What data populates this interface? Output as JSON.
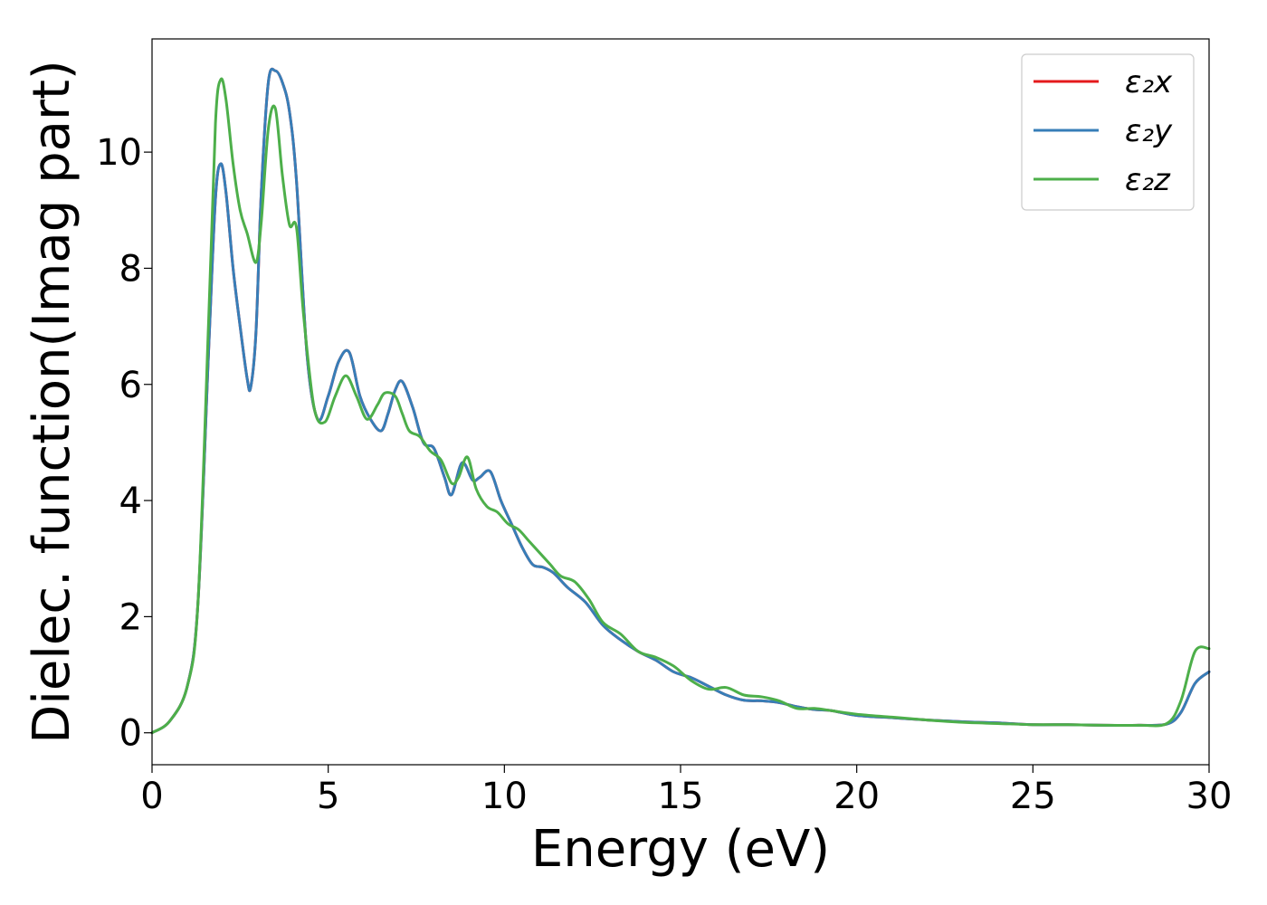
{
  "chart_data": {
    "type": "line",
    "title": "",
    "xlabel": "Energy (eV)",
    "ylabel": "Dielec. function(Imag part)",
    "xlim": [
      0,
      30
    ],
    "ylim": [
      -0.55,
      11.95
    ],
    "xticks": [
      0,
      5,
      10,
      15,
      20,
      25,
      30
    ],
    "xtick_labels": [
      "0",
      "5",
      "10",
      "15",
      "20",
      "25",
      "30"
    ],
    "yticks": [
      0,
      2,
      4,
      6,
      8,
      10
    ],
    "ytick_labels": [
      "0",
      "2",
      "4",
      "6",
      "8",
      "10"
    ],
    "grid": false,
    "legend_position": "top-right",
    "series": [
      {
        "name": "ε₂x",
        "color": "#e41a1c",
        "x": [
          0,
          0.5,
          1.0,
          1.3,
          1.6,
          1.8,
          1.95,
          2.1,
          2.3,
          2.5,
          2.7,
          2.8,
          2.95,
          3.1,
          3.3,
          3.5,
          3.7,
          3.9,
          4.1,
          4.4,
          4.7,
          5.0,
          5.3,
          5.6,
          5.9,
          6.2,
          6.5,
          6.7,
          6.9,
          7.1,
          7.4,
          7.7,
          8.0,
          8.3,
          8.5,
          8.8,
          9.1,
          9.3,
          9.6,
          9.9,
          10.2,
          10.5,
          10.8,
          11.1,
          11.4,
          11.8,
          12.3,
          12.8,
          13.3,
          13.8,
          14.3,
          14.8,
          15.3,
          15.8,
          16.3,
          16.8,
          17.3,
          17.8,
          18.3,
          18.8,
          19.3,
          20.0,
          21.0,
          22.0,
          23.0,
          24.0,
          25.0,
          26.0,
          27.0,
          28.0,
          28.8,
          29.2,
          29.6,
          30.0
        ],
        "y": [
          0.0,
          0.2,
          0.8,
          2.2,
          6.5,
          9.2,
          9.8,
          9.3,
          8.0,
          7.0,
          6.1,
          5.95,
          6.9,
          9.3,
          11.2,
          11.4,
          11.2,
          10.7,
          9.5,
          6.5,
          5.4,
          5.8,
          6.4,
          6.55,
          5.8,
          5.4,
          5.2,
          5.5,
          5.9,
          6.05,
          5.6,
          5.0,
          4.9,
          4.4,
          4.1,
          4.65,
          4.35,
          4.4,
          4.5,
          4.0,
          3.6,
          3.2,
          2.9,
          2.85,
          2.75,
          2.5,
          2.25,
          1.85,
          1.6,
          1.4,
          1.25,
          1.05,
          0.95,
          0.8,
          0.65,
          0.56,
          0.55,
          0.52,
          0.45,
          0.4,
          0.38,
          0.3,
          0.26,
          0.22,
          0.19,
          0.17,
          0.14,
          0.14,
          0.13,
          0.13,
          0.15,
          0.35,
          0.85,
          1.05
        ]
      },
      {
        "name": "ε₂y",
        "color": "#377eb8",
        "x": [
          0,
          0.5,
          1.0,
          1.3,
          1.6,
          1.8,
          1.95,
          2.1,
          2.3,
          2.5,
          2.7,
          2.8,
          2.95,
          3.1,
          3.3,
          3.5,
          3.7,
          3.9,
          4.1,
          4.4,
          4.7,
          5.0,
          5.3,
          5.6,
          5.9,
          6.2,
          6.5,
          6.7,
          6.9,
          7.1,
          7.4,
          7.7,
          8.0,
          8.3,
          8.5,
          8.8,
          9.1,
          9.3,
          9.6,
          9.9,
          10.2,
          10.5,
          10.8,
          11.1,
          11.4,
          11.8,
          12.3,
          12.8,
          13.3,
          13.8,
          14.3,
          14.8,
          15.3,
          15.8,
          16.3,
          16.8,
          17.3,
          17.8,
          18.3,
          18.8,
          19.3,
          20.0,
          21.0,
          22.0,
          23.0,
          24.0,
          25.0,
          26.0,
          27.0,
          28.0,
          28.8,
          29.2,
          29.6,
          30.0
        ],
        "y": [
          0.0,
          0.2,
          0.8,
          2.2,
          6.5,
          9.2,
          9.8,
          9.3,
          8.0,
          7.0,
          6.1,
          5.95,
          6.9,
          9.3,
          11.2,
          11.4,
          11.2,
          10.7,
          9.5,
          6.5,
          5.4,
          5.8,
          6.4,
          6.55,
          5.8,
          5.4,
          5.2,
          5.5,
          5.9,
          6.05,
          5.6,
          5.0,
          4.9,
          4.4,
          4.1,
          4.65,
          4.35,
          4.4,
          4.5,
          4.0,
          3.6,
          3.2,
          2.9,
          2.85,
          2.75,
          2.5,
          2.25,
          1.85,
          1.6,
          1.4,
          1.25,
          1.05,
          0.95,
          0.8,
          0.65,
          0.56,
          0.55,
          0.52,
          0.45,
          0.4,
          0.38,
          0.3,
          0.26,
          0.22,
          0.19,
          0.17,
          0.14,
          0.14,
          0.13,
          0.13,
          0.15,
          0.35,
          0.85,
          1.05
        ]
      },
      {
        "name": "ε₂z",
        "color": "#4daf4a",
        "x": [
          0,
          0.5,
          1.0,
          1.3,
          1.6,
          1.8,
          1.95,
          2.1,
          2.3,
          2.5,
          2.7,
          2.95,
          3.1,
          3.3,
          3.5,
          3.7,
          3.9,
          4.1,
          4.3,
          4.6,
          4.9,
          5.2,
          5.5,
          5.8,
          6.1,
          6.4,
          6.6,
          6.9,
          7.1,
          7.3,
          7.6,
          7.9,
          8.2,
          8.5,
          8.7,
          8.95,
          9.2,
          9.5,
          9.8,
          10.1,
          10.4,
          10.7,
          11.0,
          11.3,
          11.6,
          12.0,
          12.4,
          12.8,
          13.3,
          13.8,
          14.3,
          14.8,
          15.3,
          15.8,
          16.3,
          16.8,
          17.3,
          17.8,
          18.3,
          18.8,
          19.3,
          20.0,
          21.0,
          22.0,
          23.0,
          24.0,
          25.0,
          26.0,
          27.0,
          28.0,
          28.8,
          29.2,
          29.6,
          30.0
        ],
        "y": [
          0.0,
          0.2,
          0.8,
          2.2,
          7.0,
          10.5,
          11.25,
          10.9,
          9.8,
          9.0,
          8.6,
          8.1,
          8.8,
          10.4,
          10.75,
          9.6,
          8.75,
          8.7,
          7.2,
          5.6,
          5.35,
          5.8,
          6.15,
          5.8,
          5.4,
          5.65,
          5.85,
          5.8,
          5.5,
          5.2,
          5.1,
          4.85,
          4.7,
          4.3,
          4.4,
          4.75,
          4.2,
          3.9,
          3.8,
          3.6,
          3.5,
          3.3,
          3.1,
          2.9,
          2.7,
          2.6,
          2.3,
          1.9,
          1.7,
          1.4,
          1.3,
          1.15,
          0.9,
          0.75,
          0.78,
          0.65,
          0.62,
          0.55,
          0.42,
          0.42,
          0.38,
          0.32,
          0.27,
          0.22,
          0.18,
          0.16,
          0.14,
          0.14,
          0.13,
          0.13,
          0.16,
          0.55,
          1.4,
          1.45
        ]
      }
    ]
  }
}
